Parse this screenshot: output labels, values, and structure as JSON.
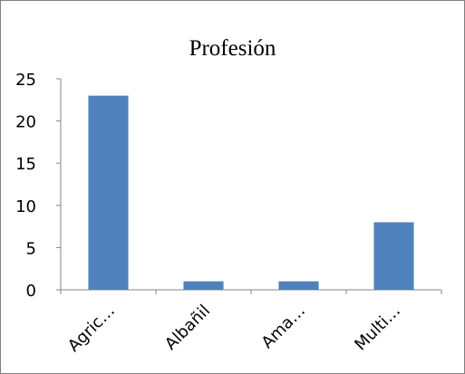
{
  "chart_data": {
    "type": "bar",
    "title": "Profesión",
    "categories": [
      "Agric…",
      "Albañil",
      "Ama…",
      "Multi…"
    ],
    "values": [
      23,
      1,
      1,
      8
    ],
    "xlabel": "",
    "ylabel": "",
    "ylim": [
      0,
      25
    ],
    "yticks": [
      0,
      5,
      10,
      15,
      20,
      25
    ],
    "grid": false,
    "legend": "none",
    "bar_color": "#4F81BD",
    "axis_color": "#868686"
  }
}
